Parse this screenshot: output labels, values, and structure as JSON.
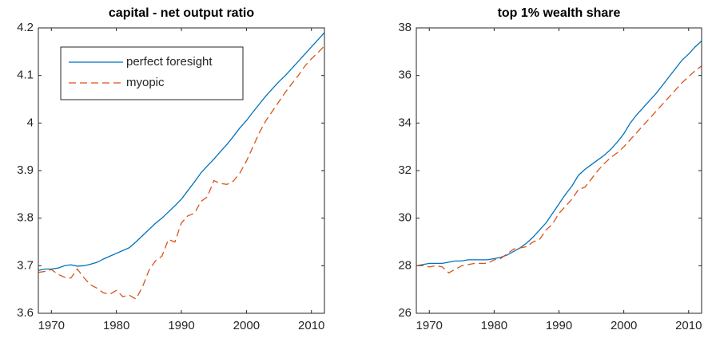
{
  "chart_data": [
    {
      "type": "line",
      "title": "capital - net output ratio",
      "x": [
        1968,
        1969,
        1970,
        1971,
        1972,
        1973,
        1974,
        1975,
        1976,
        1977,
        1978,
        1979,
        1980,
        1981,
        1982,
        1983,
        1984,
        1985,
        1986,
        1987,
        1988,
        1989,
        1990,
        1991,
        1992,
        1993,
        1994,
        1995,
        1996,
        1997,
        1998,
        1999,
        2000,
        2001,
        2002,
        2003,
        2004,
        2005,
        2006,
        2007,
        2008,
        2009,
        2010,
        2011,
        2012
      ],
      "series": [
        {
          "name": "perfect foresight",
          "color": "#0072bd",
          "dash": false,
          "values": [
            3.69,
            3.693,
            3.693,
            3.695,
            3.7,
            3.702,
            3.699,
            3.7,
            3.703,
            3.707,
            3.714,
            3.72,
            3.726,
            3.732,
            3.738,
            3.75,
            3.763,
            3.776,
            3.789,
            3.8,
            3.813,
            3.826,
            3.84,
            3.858,
            3.876,
            3.895,
            3.91,
            3.924,
            3.94,
            3.955,
            3.972,
            3.99,
            4.005,
            4.023,
            4.04,
            4.057,
            4.072,
            4.087,
            4.1,
            4.115,
            4.13,
            4.145,
            4.16,
            4.175,
            4.19
          ]
        },
        {
          "name": "myopic",
          "color": "#d95319",
          "dash": true,
          "values": [
            3.686,
            3.688,
            3.692,
            3.682,
            3.676,
            3.674,
            3.693,
            3.675,
            3.66,
            3.653,
            3.643,
            3.64,
            3.648,
            3.635,
            3.638,
            3.63,
            3.655,
            3.69,
            3.71,
            3.72,
            3.755,
            3.75,
            3.79,
            3.805,
            3.81,
            3.835,
            3.845,
            3.879,
            3.873,
            3.871,
            3.878,
            3.895,
            3.92,
            3.95,
            3.98,
            4.005,
            4.025,
            4.045,
            4.065,
            4.083,
            4.1,
            4.12,
            4.135,
            4.148,
            4.162
          ]
        }
      ],
      "xlim": [
        1968,
        2012
      ],
      "xticks": [
        1970,
        1980,
        1990,
        2000,
        2010
      ],
      "ylim": [
        3.6,
        4.2
      ],
      "yticks": [
        3.6,
        3.7,
        3.8,
        3.9,
        4,
        4.1,
        4.2
      ],
      "legend": "upper left"
    },
    {
      "type": "line",
      "title": "top 1% wealth share",
      "x": [
        1968,
        1969,
        1970,
        1971,
        1972,
        1973,
        1974,
        1975,
        1976,
        1977,
        1978,
        1979,
        1980,
        1981,
        1982,
        1983,
        1984,
        1985,
        1986,
        1987,
        1988,
        1989,
        1990,
        1991,
        1992,
        1993,
        1994,
        1995,
        1996,
        1997,
        1998,
        1999,
        2000,
        2001,
        2002,
        2003,
        2004,
        2005,
        2006,
        2007,
        2008,
        2009,
        2010,
        2011,
        2012
      ],
      "series": [
        {
          "color": "#0072bd",
          "dash": false,
          "values": [
            28.0,
            28.05,
            28.1,
            28.1,
            28.1,
            28.15,
            28.2,
            28.2,
            28.25,
            28.25,
            28.25,
            28.25,
            28.3,
            28.35,
            28.45,
            28.6,
            28.75,
            28.95,
            29.2,
            29.5,
            29.8,
            30.2,
            30.6,
            31.0,
            31.35,
            31.8,
            32.05,
            32.25,
            32.45,
            32.65,
            32.9,
            33.2,
            33.55,
            34.0,
            34.35,
            34.65,
            34.95,
            35.25,
            35.6,
            35.95,
            36.3,
            36.65,
            36.9,
            37.2,
            37.45
          ]
        },
        {
          "color": "#d95319",
          "dash": true,
          "values": [
            28.0,
            28.0,
            27.95,
            28.0,
            27.95,
            27.7,
            27.85,
            28.0,
            28.05,
            28.1,
            28.1,
            28.1,
            28.25,
            28.3,
            28.5,
            28.7,
            28.75,
            28.8,
            29.0,
            29.1,
            29.5,
            29.75,
            30.2,
            30.5,
            30.8,
            31.2,
            31.3,
            31.65,
            32.0,
            32.3,
            32.55,
            32.75,
            33.0,
            33.3,
            33.6,
            33.9,
            34.2,
            34.5,
            34.8,
            35.1,
            35.4,
            35.7,
            35.95,
            36.2,
            36.4
          ]
        }
      ],
      "xlim": [
        1968,
        2012
      ],
      "xticks": [
        1970,
        1980,
        1990,
        2000,
        2010
      ],
      "ylim": [
        26,
        38
      ],
      "yticks": [
        26,
        28,
        30,
        32,
        34,
        36,
        38
      ]
    }
  ]
}
